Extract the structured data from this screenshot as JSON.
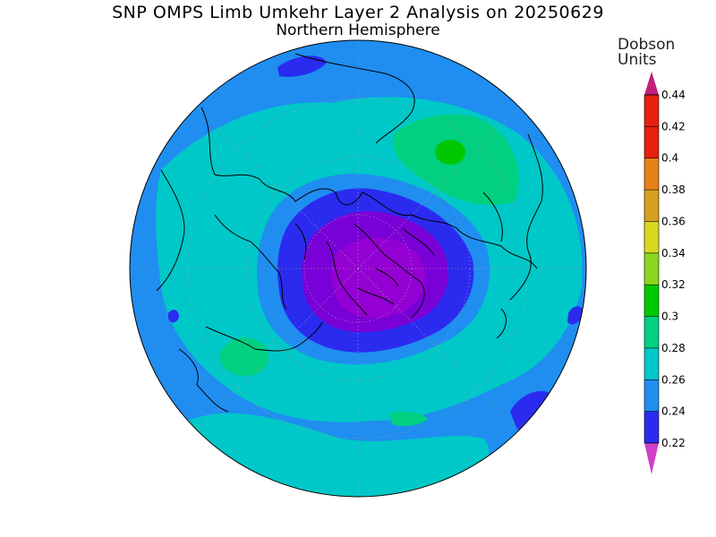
{
  "title": "SNP OMPS Limb Umkehr Layer 2 Analysis on 20250629",
  "subtitle": "Northern Hemisphere",
  "colorbar": {
    "unit_line1": "Dobson",
    "unit_line2": "Units",
    "levels": [
      {
        "value": "0.22",
        "color": "#7a00d8"
      },
      {
        "value": "0.24",
        "color": "#2b2bf0"
      },
      {
        "value": "0.26",
        "color": "#1f8ef0"
      },
      {
        "value": "0.28",
        "color": "#00c8c8"
      },
      {
        "value": "0.3",
        "color": "#00d080"
      },
      {
        "value": "0.32",
        "color": "#00c800"
      },
      {
        "value": "0.34",
        "color": "#88d820"
      },
      {
        "value": "0.36",
        "color": "#d8d820"
      },
      {
        "value": "0.38",
        "color": "#d8a020"
      },
      {
        "value": "0.4",
        "color": "#e88018"
      },
      {
        "value": "0.42",
        "color": "#e82010"
      },
      {
        "value": "0.44",
        "color": "#e82010"
      }
    ],
    "top_arrow_color": "#c0207a",
    "bottom_arrow_color": "#d040c8"
  },
  "map": {
    "projection": "north-polar-stereographic",
    "colors": {
      "lowest": "#9400d3",
      "purple": "#7a00d8",
      "dark_blue": "#2b2bf0",
      "mid_blue": "#1f8ef0",
      "cyan": "#00c8c8",
      "teal_green": "#00d080",
      "green": "#00c800"
    }
  }
}
